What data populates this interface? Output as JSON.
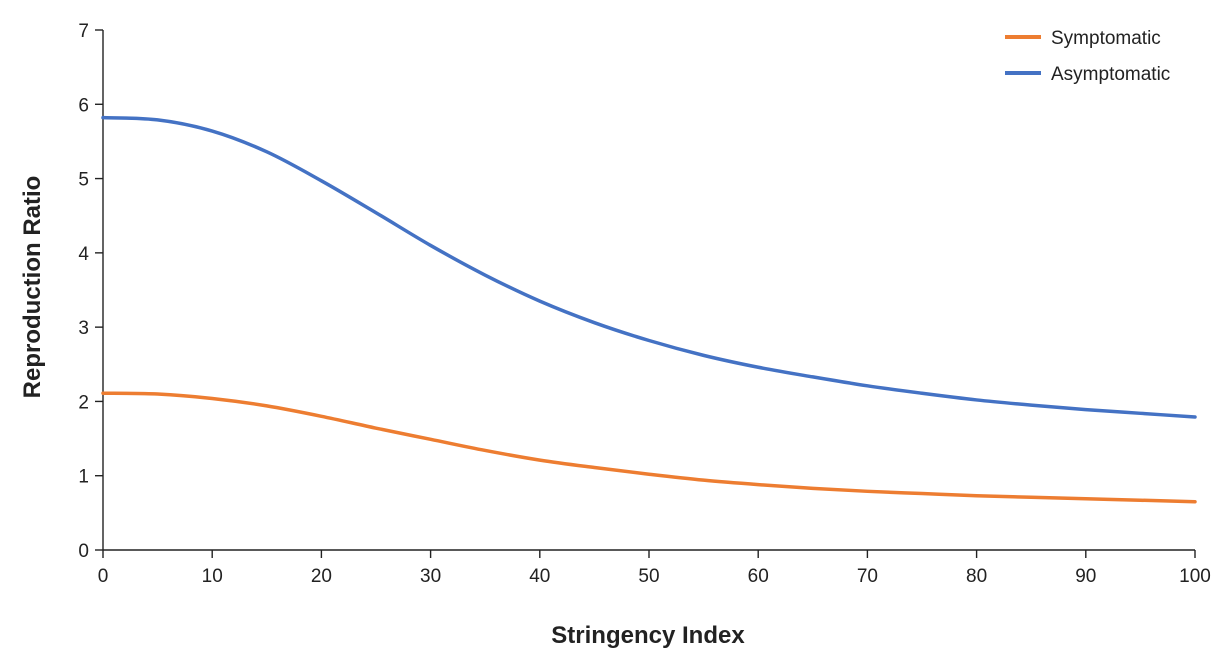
{
  "chart_data": {
    "type": "line",
    "title": "",
    "xlabel": "Stringency Index",
    "ylabel": "Reproduction Ratio",
    "xlim": [
      0,
      100
    ],
    "ylim": [
      0,
      7
    ],
    "xticks": [
      0,
      10,
      20,
      30,
      40,
      50,
      60,
      70,
      80,
      90,
      100
    ],
    "yticks": [
      0,
      1,
      2,
      3,
      4,
      5,
      6,
      7
    ],
    "grid": false,
    "legend": "top-right",
    "x": [
      0,
      5,
      10,
      15,
      20,
      25,
      30,
      35,
      40,
      45,
      50,
      55,
      60,
      65,
      70,
      75,
      80,
      85,
      90,
      95,
      100
    ],
    "series": [
      {
        "name": "Symptomatic",
        "color": "#ED7D31",
        "values": [
          2.11,
          2.1,
          2.04,
          1.94,
          1.8,
          1.64,
          1.49,
          1.34,
          1.21,
          1.11,
          1.02,
          0.94,
          0.88,
          0.83,
          0.79,
          0.76,
          0.73,
          0.71,
          0.69,
          0.67,
          0.65
        ]
      },
      {
        "name": "Asymptomatic",
        "color": "#4472C4",
        "values": [
          5.82,
          5.79,
          5.64,
          5.36,
          4.97,
          4.54,
          4.1,
          3.7,
          3.35,
          3.06,
          2.82,
          2.62,
          2.46,
          2.33,
          2.21,
          2.11,
          2.02,
          1.95,
          1.89,
          1.84,
          1.79
        ]
      }
    ]
  }
}
